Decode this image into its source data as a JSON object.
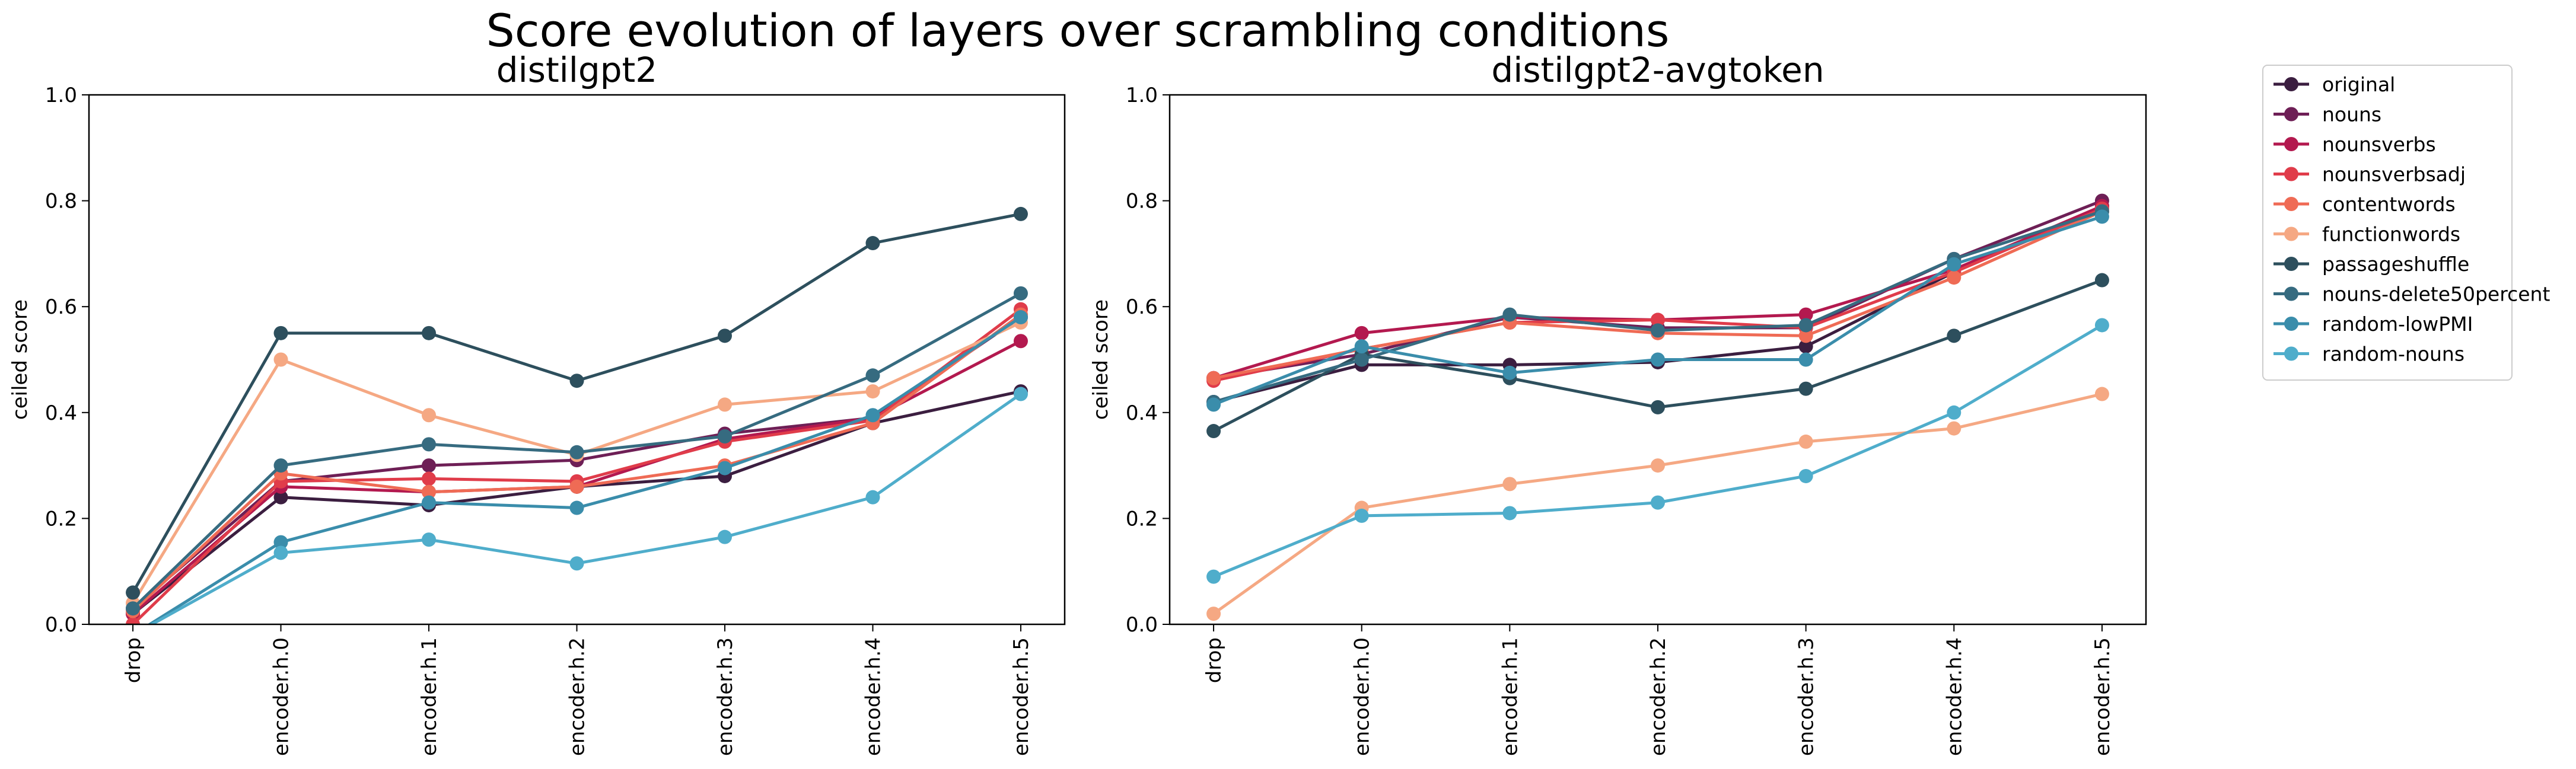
{
  "figure": {
    "suptitle": "Score evolution of layers over scrambling conditions"
  },
  "legend": {
    "placement": "outside-right-top",
    "entries": [
      {
        "name": "original",
        "color": "#3b1e40"
      },
      {
        "name": "nouns",
        "color": "#6e1f56"
      },
      {
        "name": "nounsverbs",
        "color": "#b3194f"
      },
      {
        "name": "nounsverbsadj",
        "color": "#e03c4a"
      },
      {
        "name": "contentwords",
        "color": "#ef6b55"
      },
      {
        "name": "functionwords",
        "color": "#f5a883"
      },
      {
        "name": "passageshuffle",
        "color": "#2d4f5d"
      },
      {
        "name": "nouns-delete50percent",
        "color": "#366b80"
      },
      {
        "name": "random-lowPMI",
        "color": "#3a8dab"
      },
      {
        "name": "random-nouns",
        "color": "#4fadcb"
      }
    ]
  },
  "chart_data": [
    {
      "type": "line",
      "title": "distilgpt2",
      "xlabel": "",
      "ylabel": "ceiled score",
      "ylim": [
        0,
        1
      ],
      "yticks": [
        "0.0",
        "0.2",
        "0.4",
        "0.6",
        "0.8",
        "1.0"
      ],
      "grid": false,
      "categories": [
        "drop",
        "encoder.h.0",
        "encoder.h.1",
        "encoder.h.2",
        "encoder.h.3",
        "encoder.h.4",
        "encoder.h.5"
      ],
      "series": [
        {
          "name": "original",
          "color": "#3b1e40",
          "values": [
            0.02,
            0.24,
            0.225,
            0.26,
            0.28,
            0.38,
            0.44
          ]
        },
        {
          "name": "nouns",
          "color": "#6e1f56",
          "values": [
            0.03,
            0.27,
            0.3,
            0.31,
            0.36,
            0.39,
            0.58
          ]
        },
        {
          "name": "nounsverbs",
          "color": "#b3194f",
          "values": [
            0.02,
            0.26,
            0.25,
            0.26,
            0.35,
            0.39,
            0.535
          ]
        },
        {
          "name": "nounsverbsadj",
          "color": "#e03c4a",
          "values": [
            0.0,
            0.27,
            0.275,
            0.27,
            0.345,
            0.385,
            0.595
          ]
        },
        {
          "name": "contentwords",
          "color": "#ef6b55",
          "values": [
            0.025,
            0.285,
            0.25,
            0.26,
            0.3,
            0.38,
            0.585
          ]
        },
        {
          "name": "functionwords",
          "color": "#f5a883",
          "values": [
            0.04,
            0.5,
            0.395,
            0.32,
            0.415,
            0.44,
            0.57
          ]
        },
        {
          "name": "passageshuffle",
          "color": "#2d4f5d",
          "values": [
            0.06,
            0.55,
            0.55,
            0.46,
            0.545,
            0.72,
            0.775
          ]
        },
        {
          "name": "nouns-delete50percent",
          "color": "#366b80",
          "values": [
            0.03,
            0.3,
            0.34,
            0.325,
            0.355,
            0.47,
            0.625
          ]
        },
        {
          "name": "random-lowPMI",
          "color": "#3a8dab",
          "values": [
            -0.02,
            0.155,
            0.23,
            0.22,
            0.295,
            0.395,
            0.58
          ]
        },
        {
          "name": "random-nouns",
          "color": "#4fadcb",
          "values": [
            -0.02,
            0.135,
            0.16,
            0.115,
            0.165,
            0.24,
            0.435
          ]
        }
      ]
    },
    {
      "type": "line",
      "title": "distilgpt2-avgtoken",
      "xlabel": "",
      "ylabel": "ceiled score",
      "ylim": [
        0,
        1
      ],
      "yticks": [
        "0.0",
        "0.2",
        "0.4",
        "0.6",
        "0.8",
        "1.0"
      ],
      "grid": false,
      "categories": [
        "drop",
        "encoder.h.0",
        "encoder.h.1",
        "encoder.h.2",
        "encoder.h.3",
        "encoder.h.4",
        "encoder.h.5"
      ],
      "series": [
        {
          "name": "original",
          "color": "#3b1e40",
          "values": [
            0.42,
            0.49,
            0.49,
            0.495,
            0.525,
            0.665,
            0.79
          ]
        },
        {
          "name": "nouns",
          "color": "#6e1f56",
          "values": [
            0.465,
            0.51,
            0.58,
            0.56,
            0.56,
            0.69,
            0.8
          ]
        },
        {
          "name": "nounsverbs",
          "color": "#b3194f",
          "values": [
            0.465,
            0.55,
            0.58,
            0.575,
            0.585,
            0.67,
            0.79
          ]
        },
        {
          "name": "nounsverbsadj",
          "color": "#e03c4a",
          "values": [
            0.46,
            0.52,
            0.57,
            0.575,
            0.56,
            0.665,
            0.785
          ]
        },
        {
          "name": "contentwords",
          "color": "#ef6b55",
          "values": [
            0.465,
            0.52,
            0.57,
            0.55,
            0.545,
            0.655,
            0.78
          ]
        },
        {
          "name": "functionwords",
          "color": "#f5a883",
          "values": [
            0.02,
            0.22,
            0.265,
            0.3,
            0.345,
            0.37,
            0.435
          ]
        },
        {
          "name": "passageshuffle",
          "color": "#2d4f5d",
          "values": [
            0.365,
            0.51,
            0.465,
            0.41,
            0.445,
            0.545,
            0.65
          ]
        },
        {
          "name": "nouns-delete50percent",
          "color": "#366b80",
          "values": [
            0.42,
            0.5,
            0.585,
            0.555,
            0.565,
            0.69,
            0.78
          ]
        },
        {
          "name": "random-lowPMI",
          "color": "#3a8dab",
          "values": [
            0.415,
            0.525,
            0.475,
            0.5,
            0.5,
            0.68,
            0.77
          ]
        },
        {
          "name": "random-nouns",
          "color": "#4fadcb",
          "values": [
            0.09,
            0.205,
            0.21,
            0.23,
            0.28,
            0.4,
            0.565
          ]
        }
      ]
    }
  ]
}
